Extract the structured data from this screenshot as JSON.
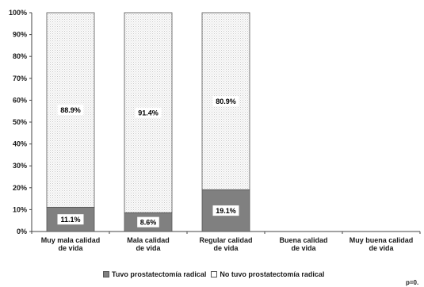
{
  "chart_data": {
    "type": "bar",
    "stacked": true,
    "percent": true,
    "categories": [
      [
        "Muy mala calidad",
        "de vida"
      ],
      [
        "Mala calidad",
        "de vida"
      ],
      [
        "Regular calidad",
        "de vida"
      ],
      [
        "Buena calidad",
        "de vida"
      ],
      [
        "Muy buena calidad",
        "de vida"
      ]
    ],
    "series": [
      {
        "name": "Tuvo prostatectomía radical",
        "values": [
          11.1,
          8.6,
          19.1,
          null,
          null
        ],
        "color": "#808080"
      },
      {
        "name": "No tuvo prostatectomía radical",
        "values": [
          88.9,
          91.4,
          80.9,
          null,
          null
        ],
        "color": "#f4f4f4"
      }
    ],
    "data_labels": [
      [
        "11.1%",
        "8.6%",
        "19.1%",
        "",
        ""
      ],
      [
        "88.9%",
        "91.4%",
        "80.9%",
        "",
        ""
      ]
    ],
    "yticks": [
      "0%",
      "10%",
      "20%",
      "30%",
      "40%",
      "50%",
      "60%",
      "70%",
      "80%",
      "90%",
      "100%"
    ],
    "ylim": [
      0,
      100
    ],
    "legend_position": "bottom",
    "grid": false
  },
  "footnote": "p=0."
}
